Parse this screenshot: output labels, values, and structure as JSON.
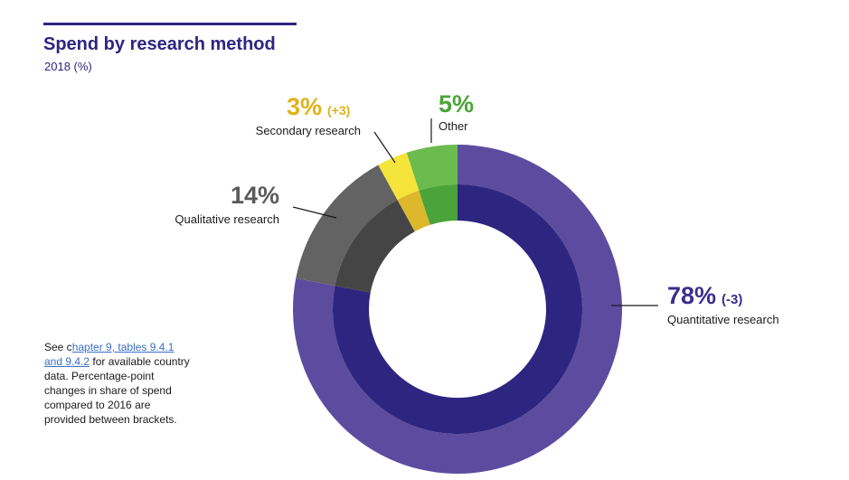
{
  "chart_data": {
    "type": "pie",
    "title": "Spend by research method",
    "subtitle": "2018 (%)",
    "series": [
      {
        "name": "Quantitative research",
        "value": 78,
        "value_label": "78%",
        "change": "(-3)",
        "outer_color": "#5c4c9f",
        "inner_color": "#2e2580",
        "label_color": "#3a2e8c"
      },
      {
        "name": "Qualitative research",
        "value": 14,
        "value_label": "14%",
        "change": "",
        "outer_color": "#636363",
        "inner_color": "#454545",
        "label_color": "#5a5a5a"
      },
      {
        "name": "Secondary research",
        "value": 3,
        "value_label": "3%",
        "change": "(+3)",
        "outer_color": "#f5e43a",
        "inner_color": "#ddb72c",
        "label_color": "#e0b21a"
      },
      {
        "name": "Other",
        "value": 5,
        "value_label": "5%",
        "change": "",
        "outer_color": "#6cbb4e",
        "inner_color": "#4aa43a",
        "label_color": "#4aa43a"
      }
    ]
  },
  "note": {
    "prefix": "See c",
    "link_text": "hapter 9, tables 9.4.1 and 9.4.2",
    "suffix": " for available country data. Percentage-point changes in share of spend compared to 2016 are provided between brackets."
  }
}
